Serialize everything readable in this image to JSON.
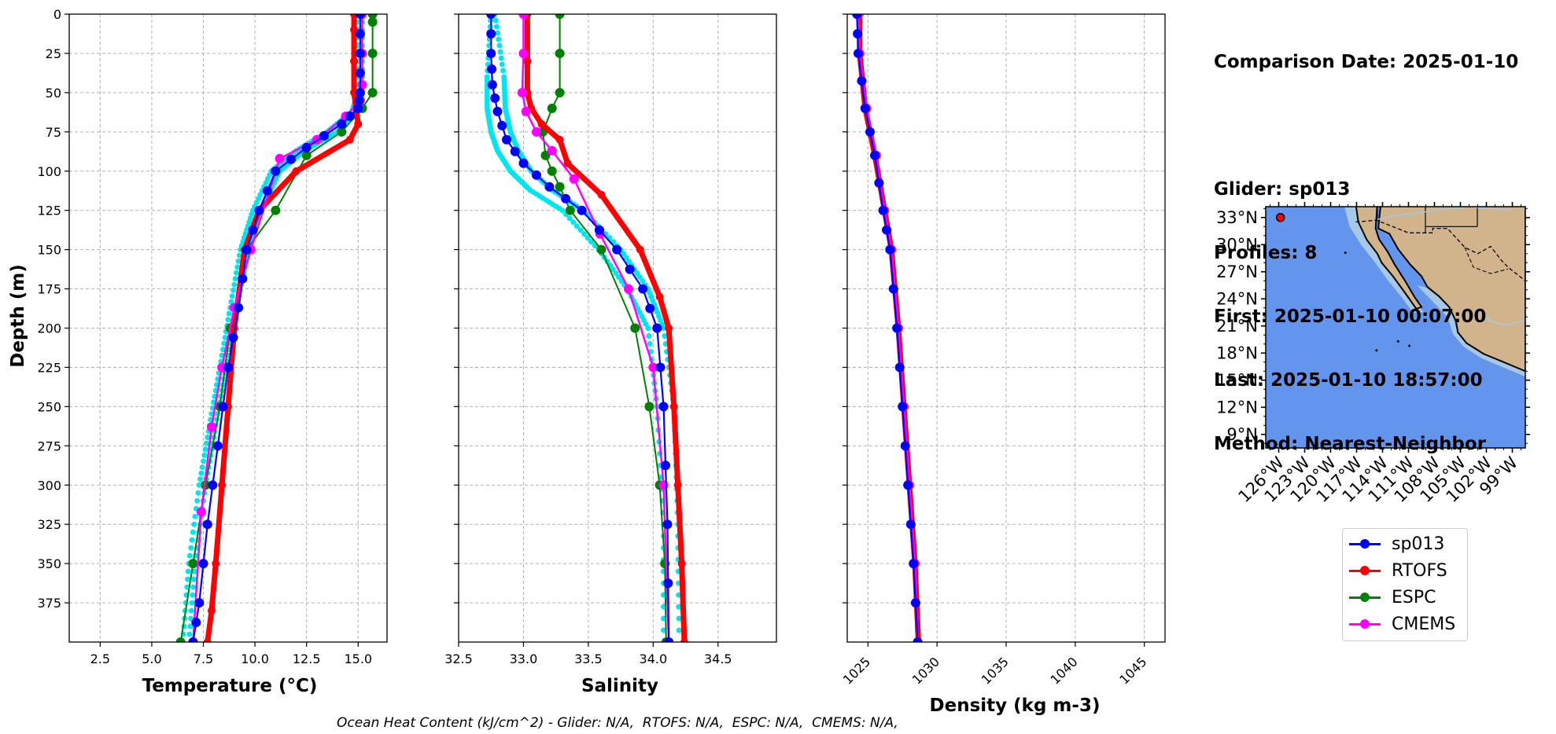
{
  "info_panel": {
    "comparison_date": "Comparison Date: 2025-01-10",
    "glider": "Glider: sp013",
    "profiles": "Profiles: 8",
    "first": "First: 2025-01-10 00:07:00",
    "last": "Last: 2025-01-10 18:57:00",
    "method": "Method: Nearest-Neighbor"
  },
  "footnote": "Ocean Heat Content (kJ/cm^2) - Glider: N/A,  RTOFS: N/A,  ESPC: N/A,  CMEMS: N/A,",
  "colors": {
    "sp013": "#0000ff",
    "RTOFS": "#ff0000",
    "ESPC": "#008000",
    "CMEMS": "#ff00ff",
    "glider_raw": "#00e5ee",
    "ocean": "#6495ed",
    "land": "#d2b48c",
    "shelf": "#a7c7e7"
  },
  "legend": [
    "sp013",
    "RTOFS",
    "ESPC",
    "CMEMS"
  ],
  "chart_data": [
    {
      "type": "line",
      "name": "temperature-profile",
      "xlabel": "Temperature (°C)",
      "ylabel": "Depth (m)",
      "xlim": [
        1.0,
        16.4
      ],
      "ylim": [
        400,
        0
      ],
      "xticks": [
        "2.5",
        "5.0",
        "7.5",
        "10.0",
        "12.5",
        "15.0"
      ],
      "yticks": [
        "0",
        "25",
        "50",
        "75",
        "100",
        "125",
        "150",
        "175",
        "200",
        "225",
        "250",
        "275",
        "300",
        "325",
        "350",
        "375"
      ],
      "grid": true,
      "series": [
        {
          "name": "RTOFS",
          "x": [
            14.8,
            14.8,
            14.8,
            14.8,
            14.9,
            15.0,
            14.6,
            12.0,
            10.2,
            9.5,
            9.0,
            8.7,
            8.4,
            8.1,
            7.9,
            7.7,
            7.5
          ],
          "y": [
            0,
            10,
            30,
            50,
            60,
            70,
            80,
            100,
            125,
            150,
            200,
            250,
            300,
            350,
            380,
            400,
            410
          ]
        },
        {
          "name": "ESPC",
          "x": [
            15.7,
            15.7,
            15.7,
            15.7,
            15.2,
            14.2,
            12.5,
            11.0,
            9.6,
            8.8,
            8.3,
            7.6,
            7.0,
            6.4
          ],
          "y": [
            0,
            5,
            25,
            50,
            60,
            75,
            90,
            125,
            150,
            200,
            250,
            300,
            350,
            400
          ]
        },
        {
          "name": "CMEMS",
          "x": [
            15.2,
            15.2,
            15.2,
            15.1,
            14.4,
            13.0,
            11.2,
            9.8,
            9.0,
            8.4,
            7.9,
            7.4,
            7.0
          ],
          "y": [
            0,
            25,
            45,
            55,
            65,
            80,
            92,
            150,
            187,
            225,
            263,
            317,
            400
          ]
        },
        {
          "name": "sp013",
          "x": [
            15.1,
            15.1,
            15.1,
            15.0,
            14.2,
            12.5,
            11.0,
            10.2,
            9.6,
            9.2,
            8.7,
            8.2,
            7.7,
            7.3,
            7.0
          ],
          "y": [
            0,
            25,
            50,
            60,
            70,
            85,
            100,
            125,
            150,
            187,
            225,
            275,
            325,
            375,
            400
          ]
        },
        {
          "name": "glider_raw_a",
          "x": [
            15.0,
            15.0,
            14.7,
            13.5,
            12.0,
            10.8,
            9.9,
            9.3,
            8.8,
            8.3,
            7.8,
            7.3,
            6.8,
            6.5
          ],
          "y": [
            0,
            50,
            62,
            75,
            87,
            100,
            125,
            150,
            187,
            225,
            262,
            300,
            350,
            400
          ]
        },
        {
          "name": "glider_raw_b",
          "x": [
            15.2,
            15.2,
            15.0,
            14.0,
            12.4,
            11.2,
            10.3,
            9.7,
            9.1,
            8.6,
            8.1,
            7.6,
            7.1,
            6.8
          ],
          "y": [
            0,
            50,
            62,
            75,
            87,
            100,
            125,
            150,
            187,
            225,
            262,
            300,
            350,
            400
          ]
        }
      ]
    },
    {
      "type": "line",
      "name": "salinity-profile",
      "xlabel": "Salinity",
      "xlim": [
        32.5,
        34.95
      ],
      "ylim": [
        400,
        0
      ],
      "xticks": [
        "32.5",
        "33.0",
        "33.5",
        "34.0",
        "34.5"
      ],
      "grid": true,
      "series": [
        {
          "name": "RTOFS",
          "x": [
            33.03,
            33.03,
            33.03,
            33.06,
            33.14,
            33.28,
            33.34,
            33.6,
            33.9,
            34.05,
            34.12,
            34.16,
            34.19,
            34.22,
            34.24,
            34.26
          ],
          "y": [
            0,
            30,
            50,
            60,
            70,
            80,
            95,
            115,
            150,
            180,
            200,
            250,
            300,
            350,
            400,
            410
          ]
        },
        {
          "name": "ESPC",
          "x": [
            33.28,
            33.28,
            33.28,
            33.22,
            33.15,
            33.17,
            33.22,
            33.28,
            33.36,
            33.6,
            33.86,
            33.97,
            34.05,
            34.09,
            34.1
          ],
          "y": [
            0,
            25,
            50,
            60,
            75,
            90,
            100,
            110,
            125,
            150,
            200,
            250,
            300,
            350,
            400
          ]
        },
        {
          "name": "CMEMS",
          "x": [
            33.0,
            33.0,
            32.99,
            33.02,
            33.1,
            33.22,
            33.39,
            33.59,
            33.81,
            34.0,
            34.08,
            34.12
          ],
          "y": [
            0,
            25,
            50,
            62,
            75,
            87,
            105,
            140,
            175,
            225,
            300,
            400
          ]
        },
        {
          "name": "sp013",
          "x": [
            32.75,
            32.75,
            32.76,
            32.8,
            32.87,
            33.0,
            33.2,
            33.45,
            33.72,
            33.92,
            34.03,
            34.08,
            34.11,
            34.12
          ],
          "y": [
            0,
            25,
            45,
            62,
            80,
            95,
            110,
            125,
            150,
            175,
            200,
            250,
            325,
            400
          ]
        },
        {
          "name": "glider_raw_a",
          "x": [
            32.75,
            32.72,
            32.72,
            32.75,
            32.8,
            32.9,
            33.05,
            33.3,
            33.58,
            33.8,
            33.96,
            34.03,
            34.08,
            34.08
          ],
          "y": [
            0,
            40,
            60,
            75,
            87,
            100,
            112,
            125,
            150,
            175,
            200,
            250,
            325,
            400
          ]
        },
        {
          "name": "glider_raw_b",
          "x": [
            32.78,
            32.85,
            32.86,
            32.9,
            32.96,
            33.06,
            33.22,
            33.46,
            33.75,
            33.96,
            34.08,
            34.16,
            34.19,
            34.2
          ],
          "y": [
            0,
            40,
            60,
            75,
            87,
            100,
            112,
            125,
            150,
            175,
            200,
            250,
            325,
            400
          ]
        }
      ]
    },
    {
      "type": "line",
      "name": "density-profile",
      "xlabel": "Density (kg m-3)",
      "xlim": [
        1023.5,
        1046.5
      ],
      "ylim": [
        400,
        0
      ],
      "xticks": [
        "1025",
        "1030",
        "1035",
        "1040",
        "1045"
      ],
      "grid": true,
      "series": [
        {
          "name": "RTOFS",
          "x": [
            1024.4,
            1024.4,
            1024.8,
            1025.5,
            1026.2,
            1026.7,
            1027.2,
            1027.6,
            1028.0,
            1028.4,
            1028.7
          ],
          "y": [
            0,
            25,
            60,
            90,
            125,
            150,
            200,
            250,
            300,
            350,
            410
          ]
        },
        {
          "name": "ESPC",
          "x": [
            1024.3,
            1024.35,
            1024.8,
            1025.5,
            1026.1,
            1026.6,
            1027.1,
            1027.5,
            1027.9,
            1028.3,
            1028.6
          ],
          "y": [
            0,
            25,
            60,
            90,
            125,
            150,
            200,
            250,
            300,
            350,
            400
          ]
        },
        {
          "name": "CMEMS",
          "x": [
            1024.3,
            1024.4,
            1024.9,
            1025.6,
            1026.2,
            1026.7,
            1027.2,
            1027.6,
            1028.0,
            1028.4,
            1028.6
          ],
          "y": [
            0,
            25,
            60,
            90,
            125,
            150,
            200,
            250,
            300,
            350,
            400
          ]
        },
        {
          "name": "sp013",
          "x": [
            1024.2,
            1024.3,
            1024.8,
            1025.5,
            1026.1,
            1026.6,
            1027.1,
            1027.5,
            1027.9,
            1028.3,
            1028.6
          ],
          "y": [
            0,
            25,
            60,
            90,
            125,
            150,
            200,
            250,
            300,
            350,
            400
          ]
        }
      ]
    }
  ],
  "map": {
    "lat_ticks": [
      "33°N",
      "30°N",
      "27°N",
      "24°N",
      "21°N",
      "18°N",
      "15°N",
      "12°N",
      "9°N"
    ],
    "lon_ticks": [
      "126°W",
      "123°W",
      "120°W",
      "117°W",
      "114°W",
      "111°W",
      "108°W",
      "105°W",
      "102°W",
      "99°W"
    ],
    "lon_range": [
      -127.5,
      -97.5
    ],
    "lat_range": [
      7.5,
      34.2
    ],
    "glider_position": {
      "lon": -125.8,
      "lat": 33.0
    }
  }
}
